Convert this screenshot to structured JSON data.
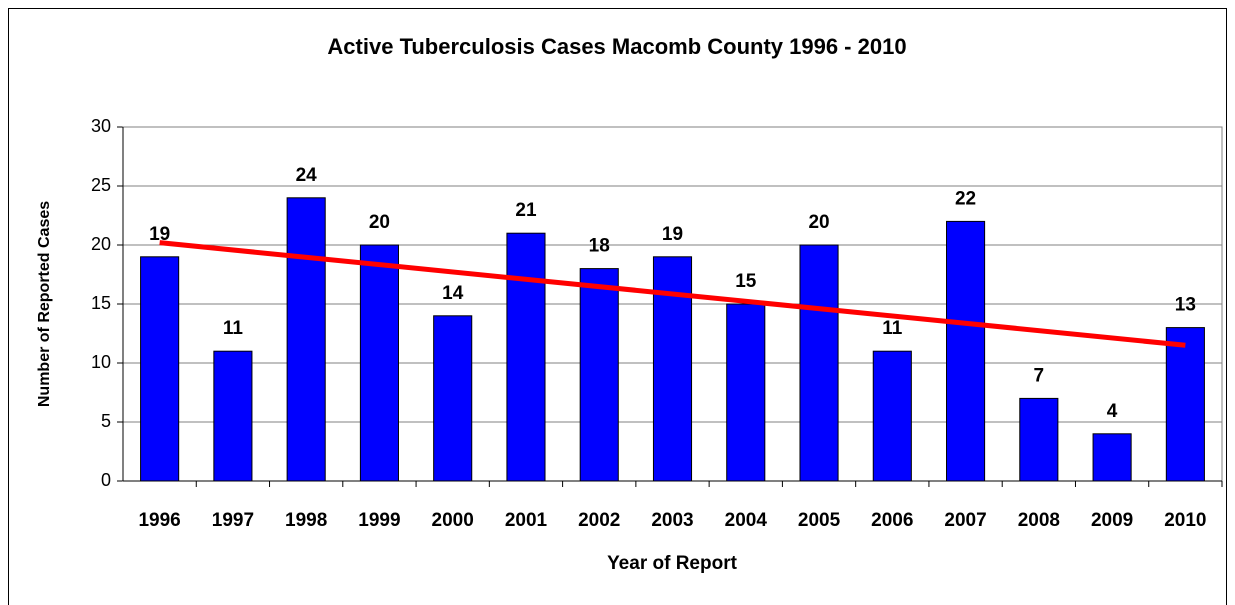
{
  "chart_data": {
    "type": "bar",
    "title": "Active Tuberculosis Cases Macomb County 1996 - 2010",
    "x_label": "Year of Report",
    "y_label": "Number of Reported Cases",
    "categories": [
      "1996",
      "1997",
      "1998",
      "1999",
      "2000",
      "2001",
      "2002",
      "2003",
      "2004",
      "2005",
      "2006",
      "2007",
      "2008",
      "2009",
      "2010"
    ],
    "values": [
      19,
      11,
      24,
      20,
      14,
      21,
      18,
      19,
      15,
      20,
      11,
      22,
      7,
      4,
      13
    ],
    "color": "#0000ff",
    "trendline": {
      "color": "#ff0000",
      "values": [
        20.2,
        11.5
      ]
    },
    "ylim": [
      0,
      30
    ],
    "yticks": [
      0,
      5,
      10,
      15,
      20,
      25,
      30
    ],
    "grid": true
  }
}
